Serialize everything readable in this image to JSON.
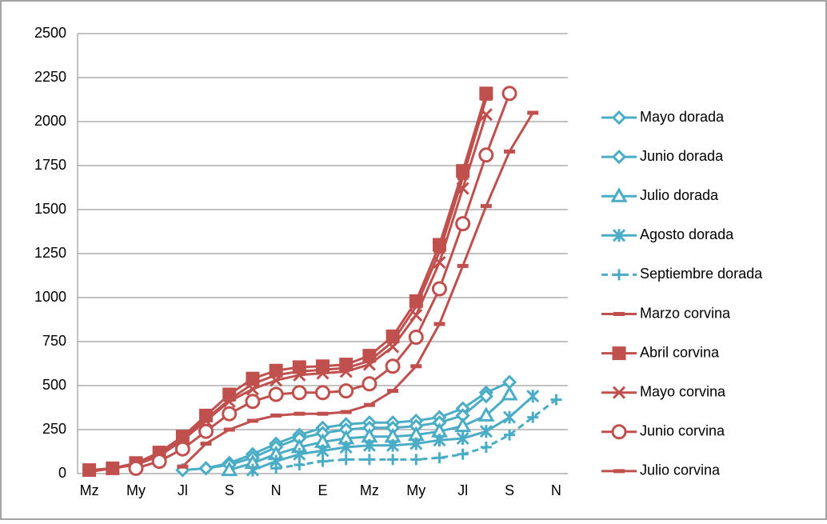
{
  "chart_data": {
    "type": "line",
    "categories": [
      "Mz",
      null,
      "My",
      null,
      "Jl",
      null,
      "S",
      null,
      "N",
      null,
      "E",
      null,
      "Mz",
      null,
      "My",
      null,
      "Jl",
      null,
      "S",
      null,
      "N"
    ],
    "ylim": [
      0,
      2500
    ],
    "yticks": [
      0,
      250,
      500,
      750,
      1000,
      1250,
      1500,
      1750,
      2000,
      2250,
      2500
    ],
    "grid": true,
    "legend": "right",
    "series": [
      {
        "name": "Mayo dorada",
        "color": "#4bacc6",
        "marker": "diamond",
        "values": [
          null,
          null,
          null,
          null,
          20,
          30,
          60,
          110,
          170,
          220,
          260,
          280,
          290,
          290,
          300,
          320,
          370,
          460,
          520,
          null,
          null
        ]
      },
      {
        "name": "Junio dorada",
        "color": "#4bacc6",
        "marker": "diamond",
        "values": [
          null,
          null,
          null,
          null,
          null,
          30,
          50,
          90,
          150,
          200,
          230,
          250,
          260,
          260,
          270,
          290,
          330,
          440,
          null,
          null,
          null
        ]
      },
      {
        "name": "Julio dorada",
        "color": "#4bacc6",
        "marker": "triangle",
        "values": [
          null,
          null,
          null,
          null,
          null,
          null,
          20,
          60,
          110,
          150,
          180,
          200,
          210,
          210,
          220,
          240,
          270,
          330,
          450,
          null,
          null
        ]
      },
      {
        "name": "Agosto dorada",
        "color": "#4bacc6",
        "marker": "star",
        "values": [
          null,
          null,
          null,
          null,
          null,
          null,
          null,
          20,
          70,
          110,
          130,
          150,
          160,
          160,
          170,
          190,
          200,
          240,
          320,
          440,
          null
        ]
      },
      {
        "name": "Septiembre dorada",
        "color": "#4bacc6",
        "marker": "plus",
        "dashed": true,
        "values": [
          null,
          null,
          null,
          null,
          null,
          null,
          null,
          null,
          30,
          50,
          70,
          80,
          80,
          80,
          80,
          90,
          110,
          150,
          220,
          320,
          420
        ]
      },
      {
        "name": "Marzo corvina",
        "color": "#c0504d",
        "marker": "dash",
        "values": [
          10,
          30,
          55,
          110,
          200,
          310,
          420,
          510,
          560,
          580,
          590,
          600,
          640,
          750,
          950,
          1260,
          1680,
          2130,
          null,
          null,
          null
        ]
      },
      {
        "name": "Abril corvina",
        "color": "#c0504d",
        "marker": "square",
        "values": [
          20,
          30,
          60,
          120,
          210,
          330,
          450,
          540,
          585,
          605,
          610,
          620,
          670,
          780,
          980,
          1300,
          1720,
          2160,
          null,
          null,
          null
        ]
      },
      {
        "name": "Mayo corvina",
        "color": "#c0504d",
        "marker": "x",
        "values": [
          null,
          30,
          50,
          100,
          190,
          300,
          410,
          480,
          530,
          560,
          570,
          580,
          620,
          720,
          900,
          1200,
          1620,
          2040,
          null,
          null,
          null
        ]
      },
      {
        "name": "Junio corvina",
        "color": "#c0504d",
        "marker": "circle",
        "values": [
          null,
          null,
          30,
          70,
          140,
          240,
          340,
          410,
          450,
          460,
          460,
          470,
          510,
          610,
          775,
          1050,
          1420,
          1810,
          2160,
          null,
          null
        ]
      },
      {
        "name": "Julio corvina",
        "color": "#c0504d",
        "marker": "dash",
        "values": [
          null,
          null,
          null,
          null,
          40,
          170,
          250,
          300,
          330,
          340,
          340,
          350,
          390,
          470,
          610,
          850,
          1180,
          1520,
          1830,
          2050,
          null
        ]
      }
    ]
  }
}
